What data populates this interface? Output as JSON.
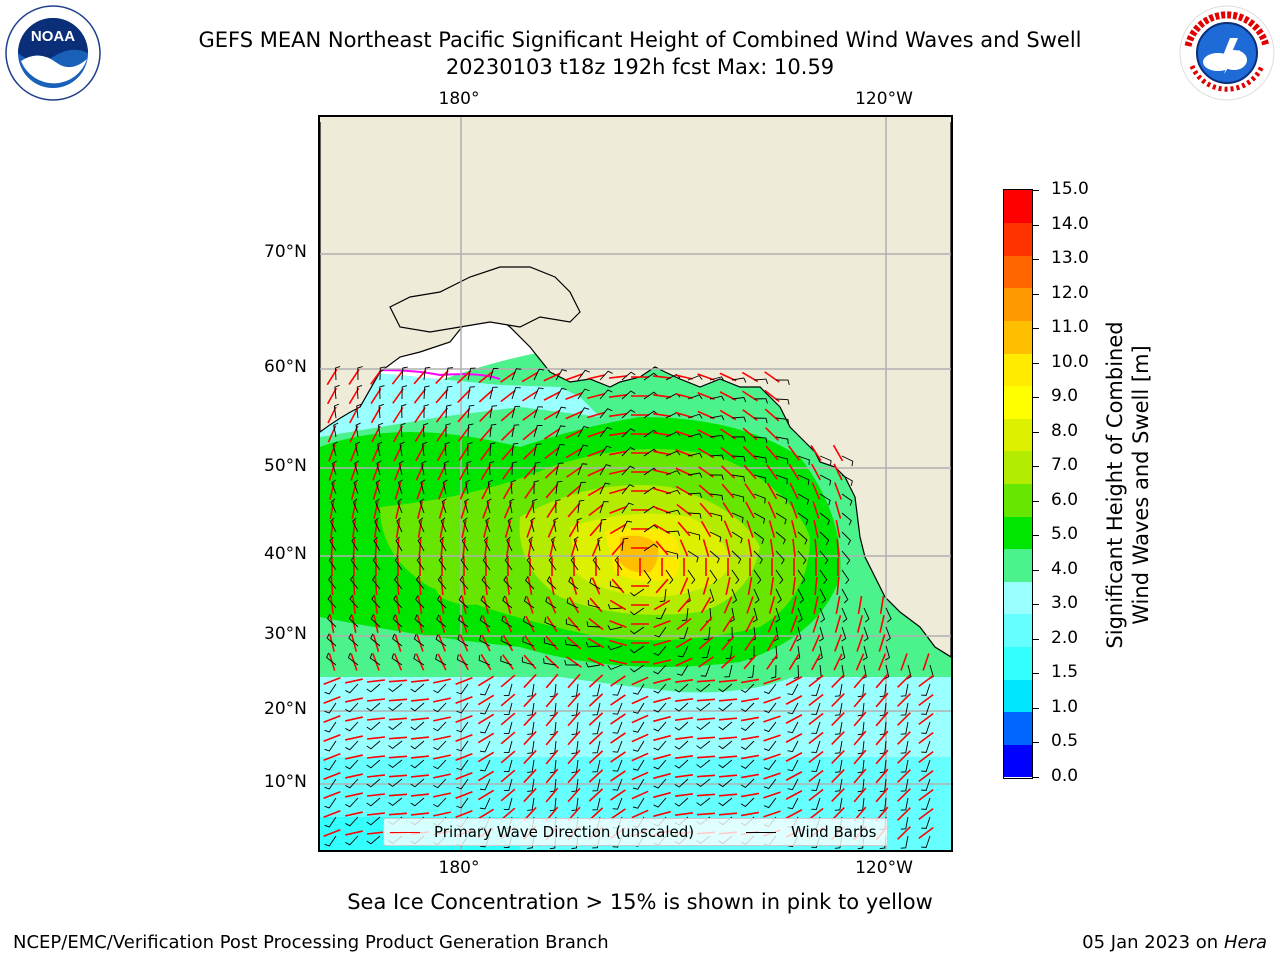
{
  "title": {
    "line1": "GEFS MEAN Northeast Pacific Significant Height of Combined Wind Waves and Swell",
    "line2": "20230103 t18z 192h fcst   Max: 10.59"
  },
  "logos": {
    "left": "noaa-logo",
    "right": "nws-logo"
  },
  "map": {
    "lon_labels_top": [
      "180°",
      "120°W"
    ],
    "lon_labels_bottom": [
      "180°",
      "120°W"
    ],
    "lat_labels": [
      "70°N",
      "60°N",
      "50°N",
      "40°N",
      "30°N",
      "20°N",
      "10°N"
    ],
    "colors": {
      "land": "#efebd9",
      "grid": "#b0b0b0",
      "wave_arrow": "#ff0000",
      "wind_barb": "#000000"
    }
  },
  "legend": {
    "wave_label": "Primary Wave Direction (unscaled)",
    "wind_label": "Wind Barbs"
  },
  "colorbar": {
    "label_line1": "Significant Height of Combined",
    "label_line2": "Wind Waves and Swell [m]",
    "ticks": [
      "15.0",
      "14.0",
      "13.0",
      "12.0",
      "11.0",
      "10.0",
      "9.0",
      "8.0",
      "7.0",
      "6.0",
      "5.0",
      "4.0",
      "3.0",
      "2.0",
      "1.5",
      "1.0",
      "0.5",
      "0.0"
    ],
    "colors_bottom_to_top": [
      "#0000ff",
      "#0066ff",
      "#00e6ff",
      "#33ffff",
      "#66ffff",
      "#99ffff",
      "#4cf28c",
      "#00e600",
      "#66e600",
      "#b3ec00",
      "#ddf000",
      "#ffff00",
      "#ffeb00",
      "#ffbf00",
      "#ff9900",
      "#ff6600",
      "#ff3300",
      "#ff0000"
    ]
  },
  "caption": "Sea Ice Concentration > 15% is shown in pink to yellow",
  "footer": {
    "left": "NCEP/EMC/Verification Post Processing Product Generation Branch",
    "right_date": "05 Jan 2023 on",
    "right_host": "Hera"
  }
}
